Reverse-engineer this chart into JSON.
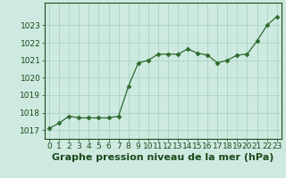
{
  "x_values": [
    0,
    1,
    2,
    3,
    4,
    5,
    6,
    7,
    8,
    9,
    10,
    11,
    12,
    13,
    14,
    15,
    16,
    17,
    18,
    19,
    20,
    21,
    22,
    23
  ],
  "y_values": [
    1017.1,
    1017.4,
    1017.8,
    1017.7,
    1017.7,
    1017.7,
    1017.7,
    1017.8,
    1019.5,
    1020.85,
    1021.0,
    1021.35,
    1021.35,
    1021.35,
    1021.65,
    1021.4,
    1021.3,
    1020.85,
    1021.0,
    1021.3,
    1021.35,
    1022.1,
    1023.0,
    1023.5
  ],
  "line_color": "#2d6a2d",
  "marker": "D",
  "marker_size": 2.5,
  "background_color": "#ceeae0",
  "grid_color": "#a8d4c4",
  "xlabel": "Graphe pression niveau de la mer (hPa)",
  "xlabel_fontsize": 8,
  "xlabel_color": "#1a4a1a",
  "tick_color": "#1a4a1a",
  "tick_fontsize": 6.5,
  "ylim": [
    1016.5,
    1024.3
  ],
  "xlim": [
    -0.5,
    23.5
  ],
  "yticks": [
    1017,
    1018,
    1019,
    1020,
    1021,
    1022,
    1023
  ],
  "xticks": [
    0,
    1,
    2,
    3,
    4,
    5,
    6,
    7,
    8,
    9,
    10,
    11,
    12,
    13,
    14,
    15,
    16,
    17,
    18,
    19,
    20,
    21,
    22,
    23
  ]
}
